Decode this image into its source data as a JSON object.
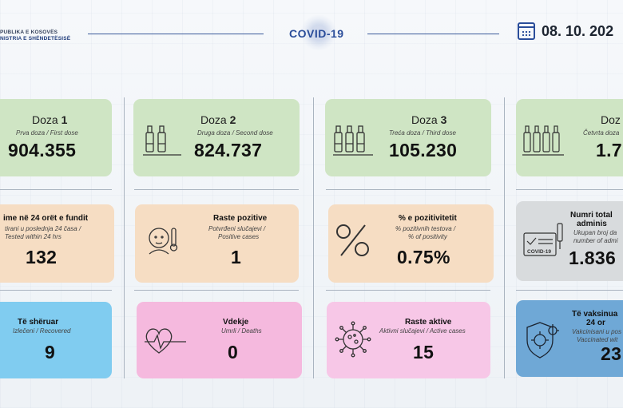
{
  "header": {
    "ministry_line1": "PUBLIKA E KOSOVËS",
    "ministry_line2": "NISTRIA E SHËNDETËSISË",
    "covid_label": "COVID-19",
    "date": "08. 10. 202"
  },
  "doses": [
    {
      "title": "Doza",
      "num": "1",
      "sub": "Prva doza / First dose",
      "value": "904.355"
    },
    {
      "title": "Doza",
      "num": "2",
      "sub": "Druga doza / Second dose",
      "value": "824.737"
    },
    {
      "title": "Doza",
      "num": "3",
      "sub": "Treća doza / Third dose",
      "value": "105.230"
    },
    {
      "title": "Doz",
      "num": "",
      "sub": "Četvrta doza",
      "value": "1.7"
    }
  ],
  "row2": [
    {
      "title": "ime në 24 orët e fundit",
      "sub1": "tirani u poslednja 24 časa /",
      "sub2": "Tested within 24 hrs",
      "value": "132"
    },
    {
      "title": "Raste pozitive",
      "sub1": "Potvrđeni slučajevi /",
      "sub2": "Positive cases",
      "value": "1"
    },
    {
      "title": "% e pozitivitetit",
      "sub1": "% pozitivnih testova /",
      "sub2": "% of positivity",
      "value": "0.75%"
    },
    {
      "title": "Numri total",
      "title2": "adminis",
      "sub1": "Ukupan broj da",
      "sub2": "number of admi",
      "value": "1.836",
      "badge": "COVID-19"
    }
  ],
  "row3": [
    {
      "title": "Të shëruar",
      "sub": "Izlečeni / Recovered",
      "value": "9"
    },
    {
      "title": "Vdekje",
      "sub": "Umrli / Deaths",
      "value": "0"
    },
    {
      "title": "Raste aktive",
      "sub": "Aktivni slučajevi / Active cases",
      "value": "15"
    },
    {
      "title": "Të vaksinua",
      "title2": "24 or",
      "sub1": "Vakcinisani u pos",
      "sub2": "Vaccinated wit",
      "value": "23"
    }
  ],
  "colors": {
    "green": "#cfe5c4",
    "peach": "#f6ddc3",
    "grey": "#d8dbdd",
    "blue": "#80ccf0",
    "pink": "#f5b9de",
    "lightpink": "#f7c7e7",
    "darkblue": "#6fa8d6"
  },
  "icons": [
    "calendar-icon",
    "vaccine-vials-icon",
    "thermometer-person-icon",
    "percent-icon",
    "covid-certificate-icon",
    "heartbeat-icon",
    "virus-icon",
    "shield-virus-icon"
  ]
}
